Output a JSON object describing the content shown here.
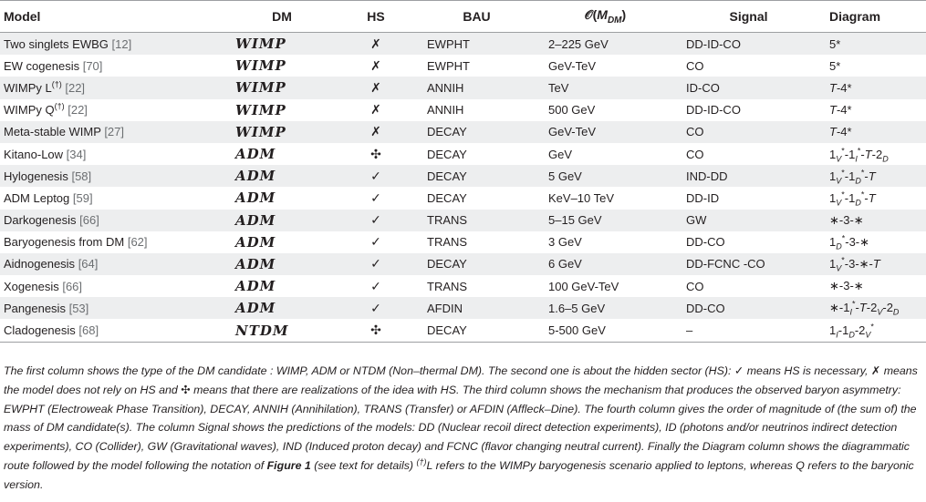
{
  "table": {
    "headers": {
      "model": "Model",
      "dm": "DM",
      "hs": "HS",
      "bau": "BAU",
      "order_prefix": "𝒪(",
      "order_M": "M",
      "order_sub": "DM",
      "order_suffix": ")",
      "signal": "Signal",
      "diagram": "Diagram"
    },
    "rows": [
      {
        "model": "Two singlets EWBG",
        "ref": "[12]",
        "dm": "WIMP",
        "hs": "✗",
        "bau": "EWPHT",
        "order": "2–225 GeV",
        "signal": "DD-ID-CO",
        "diagram": "5*"
      },
      {
        "model": "EW cogenesis",
        "ref": "[70]",
        "dm": "WIMP",
        "hs": "✗",
        "bau": "EWPHT",
        "order": "GeV-TeV",
        "signal": "CO",
        "diagram": "5*"
      },
      {
        "model": "WIMPy L",
        "dagger": "(†)",
        "ref": "[22]",
        "dm": "WIMP",
        "hs": "✗",
        "bau": "ANNIH",
        "order": "TeV",
        "signal": "ID-CO",
        "diagram_T": "T",
        "diagram_rest": "-4*"
      },
      {
        "model": "WIMPy Q",
        "dagger": "(†)",
        "ref": "[22]",
        "dm": "WIMP",
        "hs": "✗",
        "bau": "ANNIH",
        "order": "500 GeV",
        "signal": "DD-ID-CO",
        "diagram_T": "T",
        "diagram_rest": "-4*"
      },
      {
        "model": "Meta-stable WIMP",
        "ref": "[27]",
        "dm": "WIMP",
        "hs": "✗",
        "bau": "DECAY",
        "order": "GeV-TeV",
        "signal": "CO",
        "diagram_T": "T",
        "diagram_rest": "-4*"
      },
      {
        "model": "Kitano-Low",
        "ref": "[34]",
        "dm": "ADM",
        "hs": "✣",
        "bau": "DECAY",
        "order": "GeV",
        "signal": "CO",
        "diagram": "1V*-1I*-T-2D"
      },
      {
        "model": "Hylogenesis",
        "ref": "[58]",
        "dm": "ADM",
        "hs": "✓",
        "bau": "DECAY",
        "order": "5 GeV",
        "signal": "IND-DD",
        "diagram": "1V*-1D*-T"
      },
      {
        "model": "ADM Leptog",
        "ref": "[59]",
        "dm": "ADM",
        "hs": "✓",
        "bau": "DECAY",
        "order": "KeV–10 TeV",
        "signal": "DD-ID",
        "diagram": "1V*-1D*-T"
      },
      {
        "model": "Darkogenesis",
        "ref": "[66]",
        "dm": "ADM",
        "hs": "✓",
        "bau": "TRANS",
        "order": "5–15 GeV",
        "signal": "GW",
        "diagram": "∗-3-∗"
      },
      {
        "model": "Baryogenesis from DM",
        "ref": "[62]",
        "dm": "ADM",
        "hs": "✓",
        "bau": "TRANS",
        "order": "3 GeV",
        "signal": "DD-CO",
        "diagram": "1D*-3-∗"
      },
      {
        "model": "Aidnogenesis",
        "ref": "[64]",
        "dm": "ADM",
        "hs": "✓",
        "bau": "DECAY",
        "order": "6 GeV",
        "signal": "DD-FCNC -CO",
        "diagram": "1V*-3-∗-T"
      },
      {
        "model": "Xogenesis",
        "ref": "[66]",
        "dm": "ADM",
        "hs": "✓",
        "bau": "TRANS",
        "order": "100 GeV-TeV",
        "signal": "CO",
        "diagram": "∗-3-∗"
      },
      {
        "model": "Pangenesis",
        "ref": "[53]",
        "dm": "ADM",
        "hs": "✓",
        "bau": "AFDIN",
        "order": "1.6–5 GeV",
        "signal": "DD-CO",
        "diagram": "∗-1I*-T-2V-2D"
      },
      {
        "model": "Cladogenesis",
        "ref": "[68]",
        "dm": "NTDM",
        "hs": "✣",
        "bau": "DECAY",
        "order": "5-500 GeV",
        "signal": "–",
        "diagram": "1I-1D-2V*"
      }
    ]
  },
  "caption": {
    "p1": "The first column shows the type of the DM candidate : WIMP, ADM or NTDM (Non–thermal DM). The second one is about the hidden sector (HS): ",
    "check": "✓",
    "p2": " means HS is necessary, ",
    "cross": "✗",
    "p3": " means the model does not rely on HS and ",
    "four": "✣",
    "p4": " means that there are realizations of the idea with HS. The third column shows the mechanism that produces the observed baryon asymmetry: EWPHT (Electroweak Phase Transition), DECAY, ANNIH (Annihilation), TRANS (Transfer) or AFDIN (Affleck–Dine). The fourth column gives the order of magnitude of (the sum of) the mass of DM candidate(s). The column Signal shows the predictions of the models: DD (Nuclear recoil direct detection experiments), ID (photons and/or neutrinos indirect detection experiments), CO (Collider), GW (Gravitational waves), IND (Induced proton decay) and FCNC (flavor changing neutral current). Finally the Diagram column shows the diagrammatic route followed by the model following the notation of ",
    "figure_ref": "Figure 1",
    "p5": " (see text for details) ",
    "dagger": "(†)",
    "p6": "L refers to the WIMPy baryogenesis scenario applied to leptons, whereas Q refers to the baryonic version."
  }
}
